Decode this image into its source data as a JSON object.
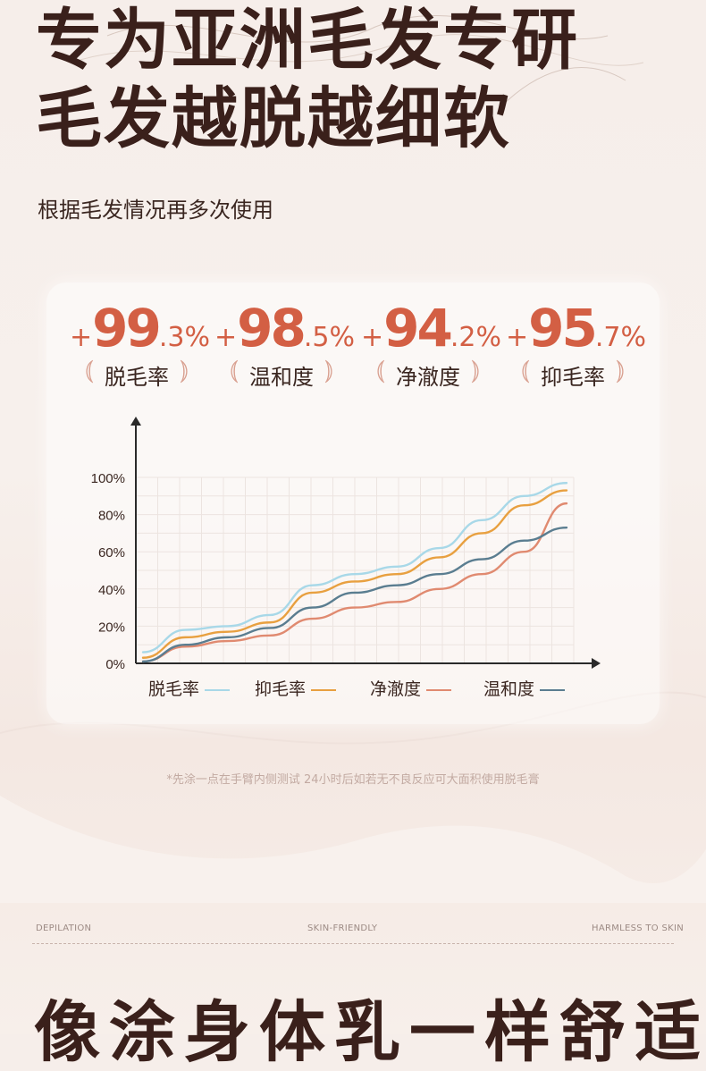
{
  "headline": {
    "line1": "专为亚洲毛发专研",
    "line2": "毛发越脱越细软",
    "subtitle": "根据毛发情况再多次使用"
  },
  "stats": [
    {
      "plus": "+",
      "int": "99",
      "dec": ".3%",
      "label": "脱毛率"
    },
    {
      "plus": "+",
      "int": "98",
      "dec": ".5%",
      "label": "温和度"
    },
    {
      "plus": "+",
      "int": "94",
      "dec": ".2%",
      "label": "净澈度"
    },
    {
      "plus": "+",
      "int": "95",
      "dec": ".7%",
      "label": "抑毛率"
    }
  ],
  "colors": {
    "accent": "#d35f44",
    "series_blue_light": "#a8d8e8",
    "series_orange": "#e8a040",
    "series_salmon": "#e08a70",
    "series_slate": "#5a7d90"
  },
  "chart_data": {
    "type": "line",
    "y_ticks": [
      "100%",
      "80%",
      "60%",
      "40%",
      "20%",
      "0%"
    ],
    "ylim": [
      0,
      100
    ],
    "xlim": [
      0,
      10
    ],
    "grid": true,
    "legend_position": "bottom",
    "series": [
      {
        "name": "脱毛率",
        "color": "#a8d8e8",
        "x": [
          0,
          1,
          2,
          3,
          4,
          5,
          6,
          7,
          8,
          9,
          10
        ],
        "values": [
          6,
          18,
          20,
          26,
          42,
          48,
          52,
          62,
          77,
          90,
          97
        ]
      },
      {
        "name": "抑毛率",
        "color": "#e8a040",
        "x": [
          0,
          1,
          2,
          3,
          4,
          5,
          6,
          7,
          8,
          9,
          10
        ],
        "values": [
          3,
          14,
          17,
          22,
          38,
          44,
          48,
          57,
          70,
          85,
          93
        ]
      },
      {
        "name": "净澈度",
        "color": "#e08a70",
        "x": [
          0,
          1,
          2,
          3,
          4,
          5,
          6,
          7,
          8,
          9,
          10
        ],
        "values": [
          1,
          9,
          12,
          15,
          24,
          30,
          33,
          40,
          48,
          60,
          86
        ]
      },
      {
        "name": "温和度",
        "color": "#5a7d90",
        "x": [
          0,
          1,
          2,
          3,
          4,
          5,
          6,
          7,
          8,
          9,
          10
        ],
        "values": [
          1,
          10,
          14,
          19,
          30,
          38,
          42,
          48,
          56,
          66,
          73
        ]
      }
    ]
  },
  "legend": [
    {
      "label": "脱毛率",
      "color": "#a8d8e8"
    },
    {
      "label": "抑毛率",
      "color": "#e8a040"
    },
    {
      "label": "净澈度",
      "color": "#e08a70"
    },
    {
      "label": "温和度",
      "color": "#5a7d90"
    }
  ],
  "disclaimer": "*先涂一点在手臂内侧测试 24小时后如若无不良反应可大面积使用脱毛膏",
  "footer_tags": {
    "left": "DEPILATION",
    "center": "SKIN-FRIENDLY",
    "right": "HARMLESS TO SKIN"
  },
  "bottom_headline": "像涂身体乳一样舒适"
}
